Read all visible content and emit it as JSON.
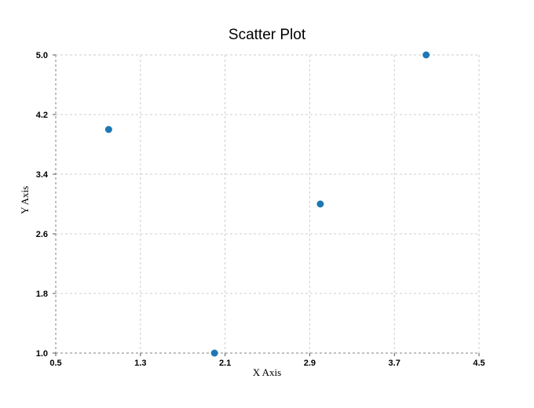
{
  "chart_data": {
    "type": "scatter",
    "title": "Scatter Plot",
    "xlabel": "X Axis",
    "ylabel": "Y Axis",
    "xlim": [
      0.5,
      4.5
    ],
    "ylim": [
      1.0,
      5.0
    ],
    "x_ticks": [
      "0.5",
      "1.3",
      "2.1",
      "2.9",
      "3.7",
      "4.5"
    ],
    "y_ticks": [
      "1.0",
      "1.8",
      "2.6",
      "3.4",
      "4.2",
      "5.0"
    ],
    "grid": true,
    "legend": "none",
    "series": [
      {
        "color": "#1f77b4",
        "points": [
          {
            "x": 1,
            "y": 4
          },
          {
            "x": 2,
            "y": 1
          },
          {
            "x": 3,
            "y": 3
          },
          {
            "x": 4,
            "y": 5
          }
        ]
      }
    ]
  }
}
